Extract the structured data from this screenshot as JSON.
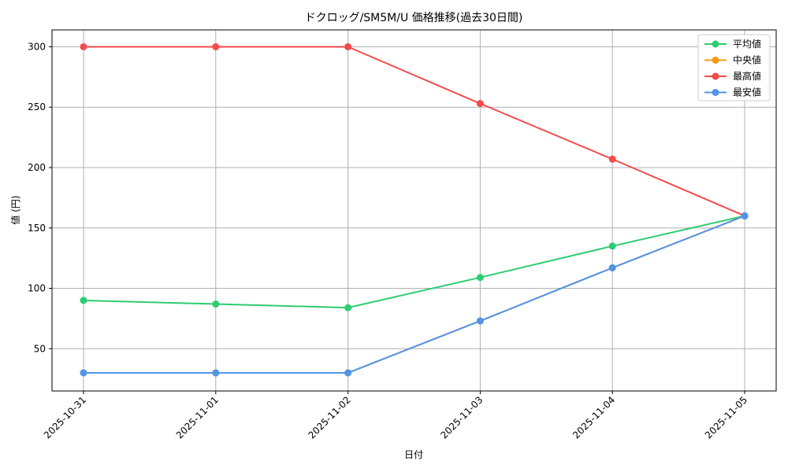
{
  "chart_data": {
    "type": "line",
    "title": "ドクロッグ/SM5M/U 価格推移(過去30日間)",
    "xlabel": "日付",
    "ylabel": "値 (円)",
    "categories": [
      "2025-10-31",
      "2025-11-01",
      "2025-11-02",
      "2025-11-03",
      "2025-11-04",
      "2025-11-05"
    ],
    "ylim": [
      15,
      314
    ],
    "yticks": [
      50,
      100,
      150,
      200,
      250,
      300
    ],
    "grid": true,
    "legend_position": "top-right",
    "series": [
      {
        "name": "平均値",
        "color": "#2ecc71",
        "values": [
          90,
          87,
          84,
          109,
          135,
          160
        ]
      },
      {
        "name": "中央値",
        "color": "#f39c12",
        "values": [
          30,
          30,
          30,
          73,
          117,
          160
        ]
      },
      {
        "name": "最高値",
        "color": "#f44b4b",
        "values": [
          300,
          300,
          300,
          253,
          207,
          160
        ]
      },
      {
        "name": "最安値",
        "color": "#5294e8",
        "values": [
          30,
          30,
          30,
          73,
          117,
          160
        ]
      }
    ]
  }
}
